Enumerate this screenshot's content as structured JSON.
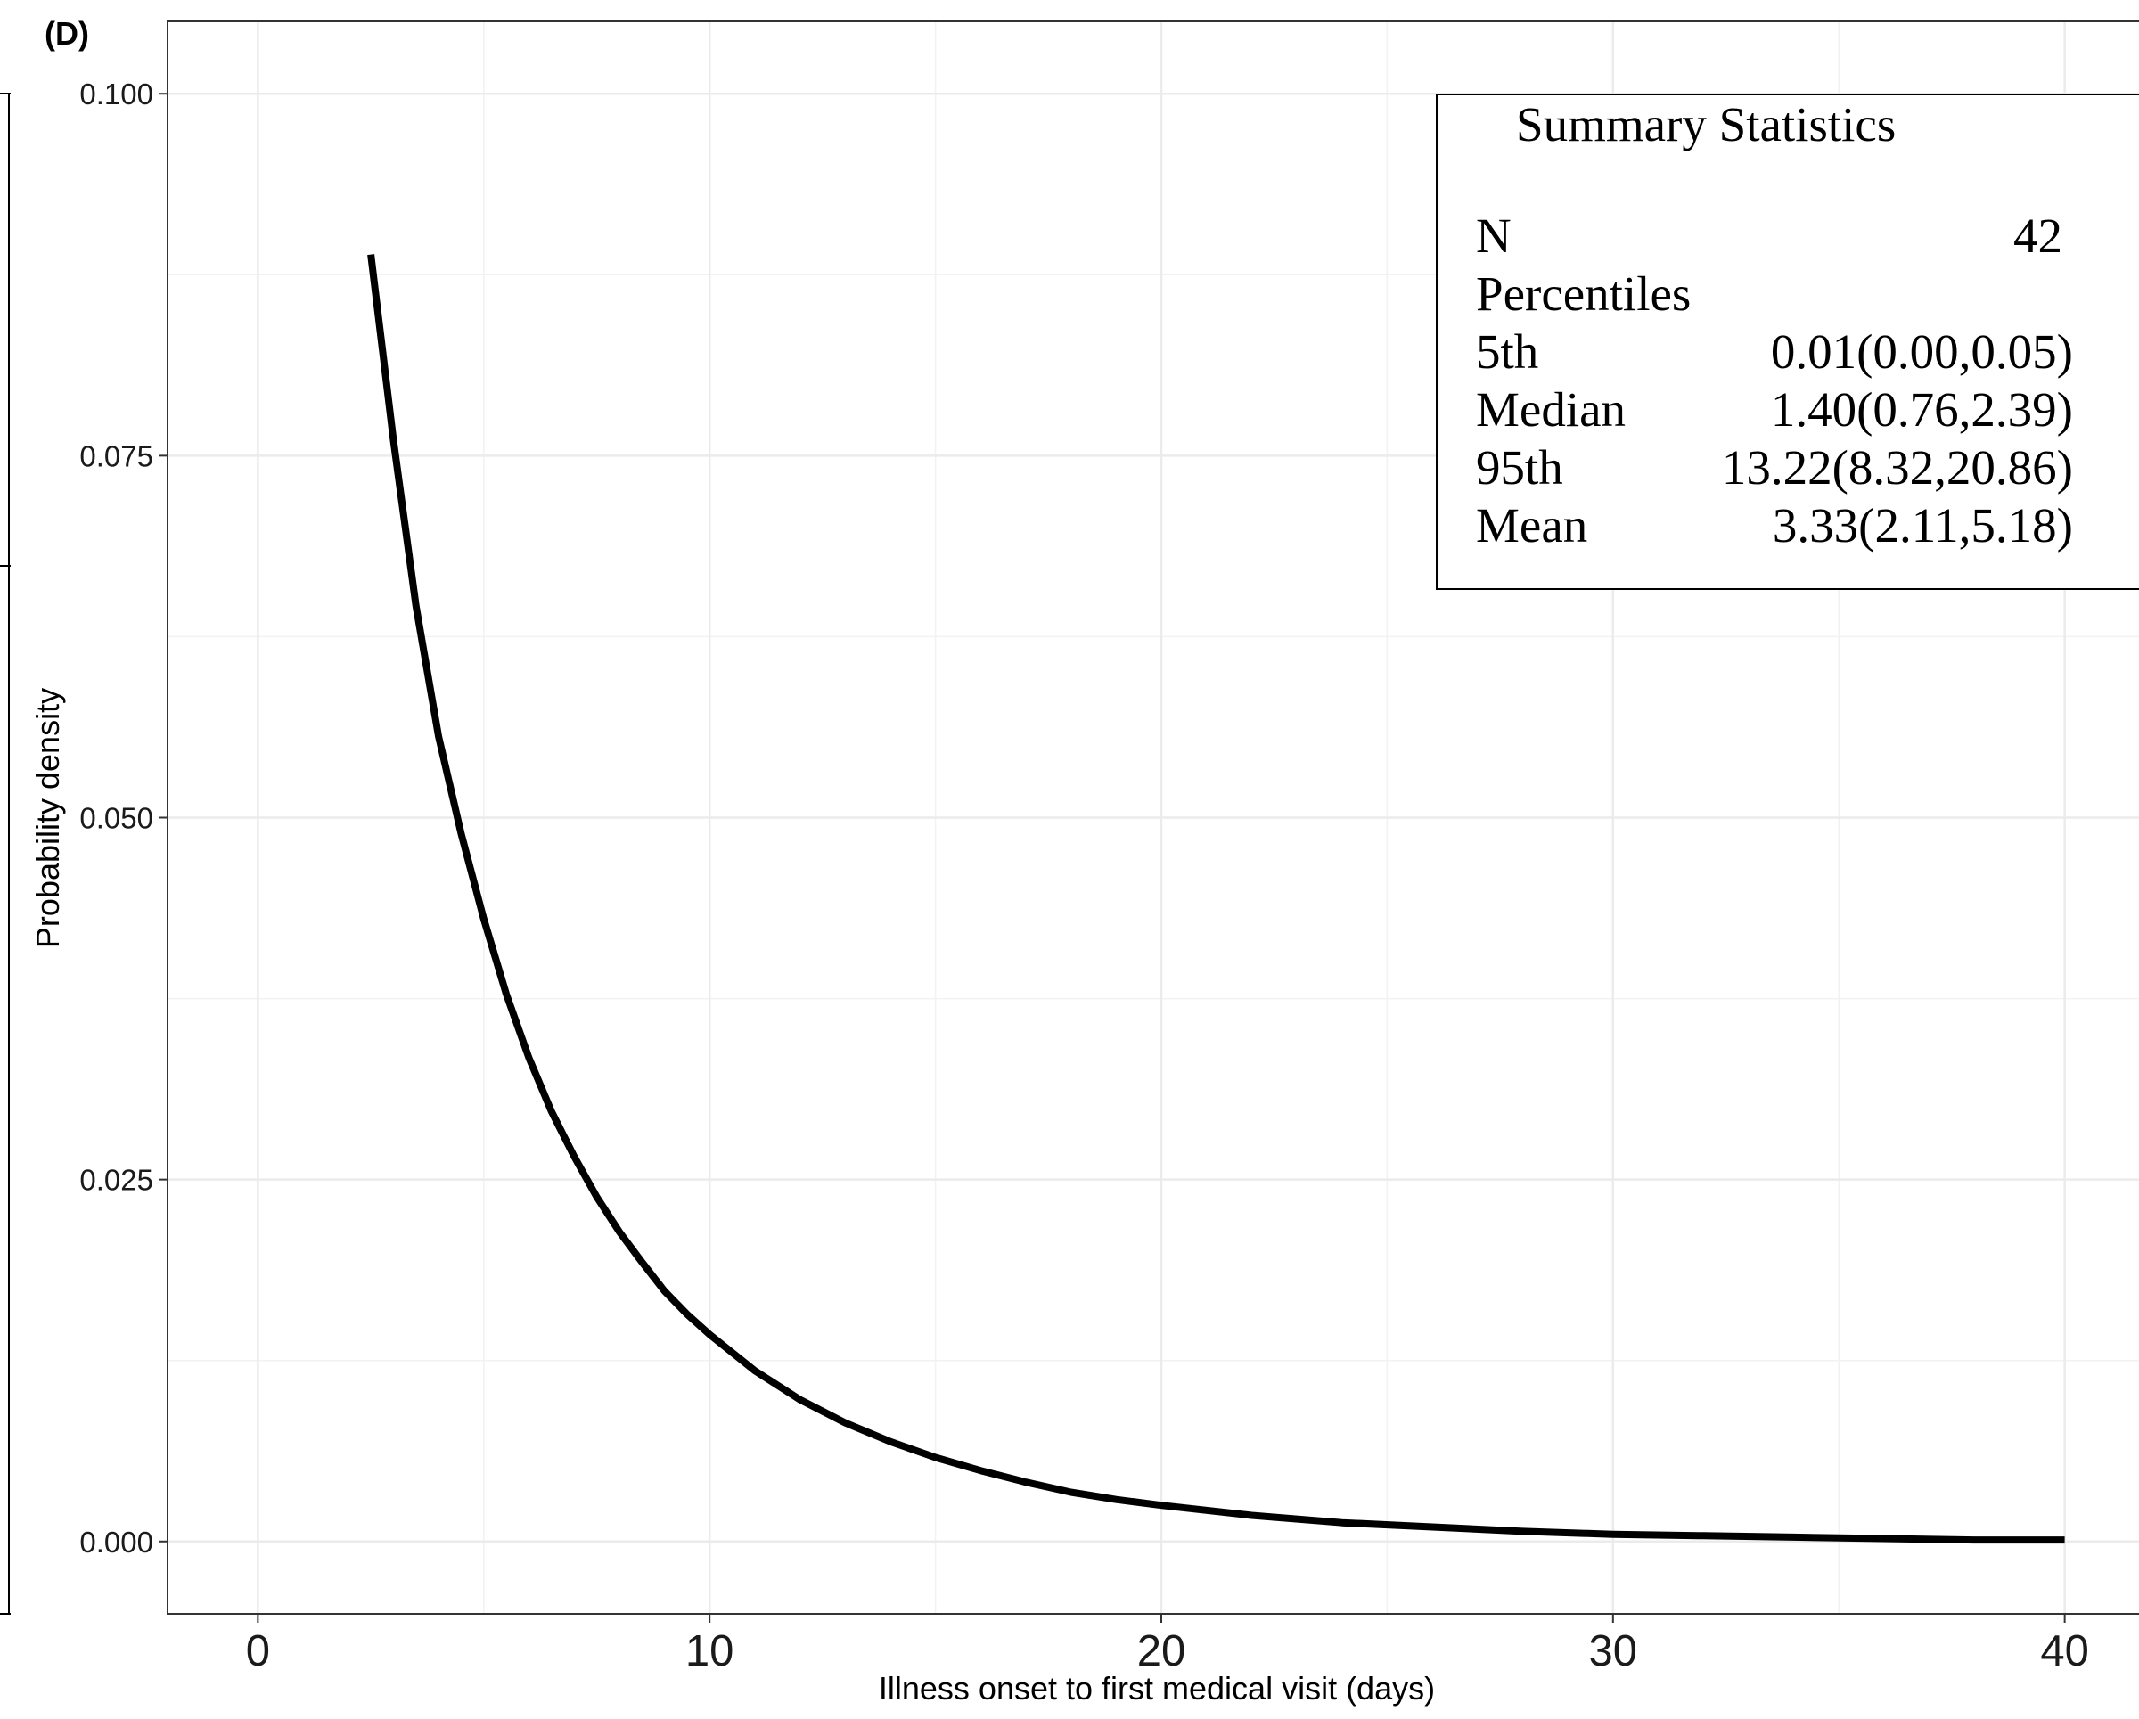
{
  "panel_label": "(D)",
  "chart_data": {
    "type": "line",
    "xlabel": "Illness onset to first medical visit (days)",
    "ylabel": "Probability density",
    "xlim": [
      -2,
      42
    ],
    "ylim": [
      -0.005,
      0.105
    ],
    "x_ticks": [
      0,
      10,
      20,
      30,
      40
    ],
    "y_ticks": [
      0.0,
      0.025,
      0.05,
      0.075,
      0.1
    ],
    "x_tick_labels": [
      "0",
      "10",
      "20",
      "30",
      "40"
    ],
    "y_tick_labels": [
      "0.000",
      "0.025",
      "0.050",
      "0.075",
      "0.100"
    ],
    "grid": true,
    "series": [
      {
        "x": [
          2.5,
          3,
          3.5,
          4,
          4.5,
          5,
          5.5,
          6,
          6.5,
          7,
          7.5,
          8,
          8.5,
          9,
          9.5,
          10,
          11,
          12,
          13,
          14,
          15,
          16,
          17,
          18,
          19,
          20,
          22,
          24,
          26,
          28,
          30,
          32,
          34,
          36,
          38,
          40
        ],
        "y": [
          0.0889,
          0.0761,
          0.0646,
          0.0556,
          0.0489,
          0.043,
          0.0378,
          0.0334,
          0.0297,
          0.0266,
          0.0238,
          0.0214,
          0.0193,
          0.0173,
          0.0157,
          0.0143,
          0.0118,
          0.0098,
          0.0082,
          0.0069,
          0.0058,
          0.0049,
          0.0041,
          0.0034,
          0.0029,
          0.0025,
          0.0018,
          0.0013,
          0.001,
          0.0007,
          0.0005,
          0.0004,
          0.0003,
          0.0002,
          0.0001,
          0.0001
        ],
        "color": "#000000"
      }
    ],
    "annotation": {
      "title": "Summary Statistics",
      "n_label": "N",
      "n_value": "42",
      "percentiles_label": "Percentiles",
      "rows": [
        {
          "label": "5th",
          "value": "0.01(0.00,0.05)"
        },
        {
          "label": "Median",
          "value": "1.40(0.76,2.39)"
        },
        {
          "label": "95th",
          "value": "13.22(8.32,20.86)"
        },
        {
          "label": "Mean",
          "value": "3.33(2.11,5.18)"
        }
      ]
    }
  }
}
